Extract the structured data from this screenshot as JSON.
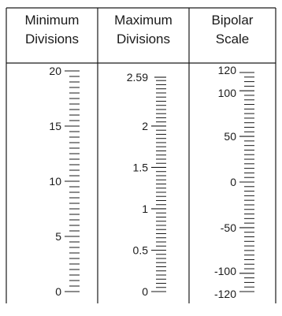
{
  "scales": [
    {
      "header": [
        "Minimum",
        "Divisions"
      ],
      "min": 0,
      "max": 20,
      "major_labels": [
        {
          "value": 0,
          "text": "0"
        },
        {
          "value": 5,
          "text": "5"
        },
        {
          "value": 10,
          "text": "10"
        },
        {
          "value": 15,
          "text": "15"
        },
        {
          "value": 20,
          "text": "20"
        }
      ],
      "long_ticks": [
        0,
        5,
        10,
        15,
        20
      ],
      "minor_step": 0.5
    },
    {
      "header": [
        "Maximum",
        "Divisions"
      ],
      "min": 0,
      "max": 2.59,
      "major_labels": [
        {
          "value": 0,
          "text": "0"
        },
        {
          "value": 0.5,
          "text": "0.5"
        },
        {
          "value": 1,
          "text": "1"
        },
        {
          "value": 1.5,
          "text": "1.5"
        },
        {
          "value": 2,
          "text": "2"
        },
        {
          "value": 2.59,
          "text": "2.59"
        }
      ],
      "long_ticks": [
        0,
        0.5,
        1,
        1.5,
        2
      ],
      "minor_step": 0.05
    },
    {
      "header": [
        "Bipolar",
        "Scale"
      ],
      "min": -120,
      "max": 120,
      "major_labels": [
        {
          "value": -120,
          "text": "-120"
        },
        {
          "value": -100,
          "text": "-100"
        },
        {
          "value": -50,
          "text": "-50"
        },
        {
          "value": 0,
          "text": "0"
        },
        {
          "value": 50,
          "text": "50"
        },
        {
          "value": 100,
          "text": "100"
        },
        {
          "value": 120,
          "text": "120"
        }
      ],
      "long_ticks": [
        -120,
        -100,
        -50,
        0,
        50,
        100,
        120
      ],
      "minor_step": 5
    }
  ]
}
